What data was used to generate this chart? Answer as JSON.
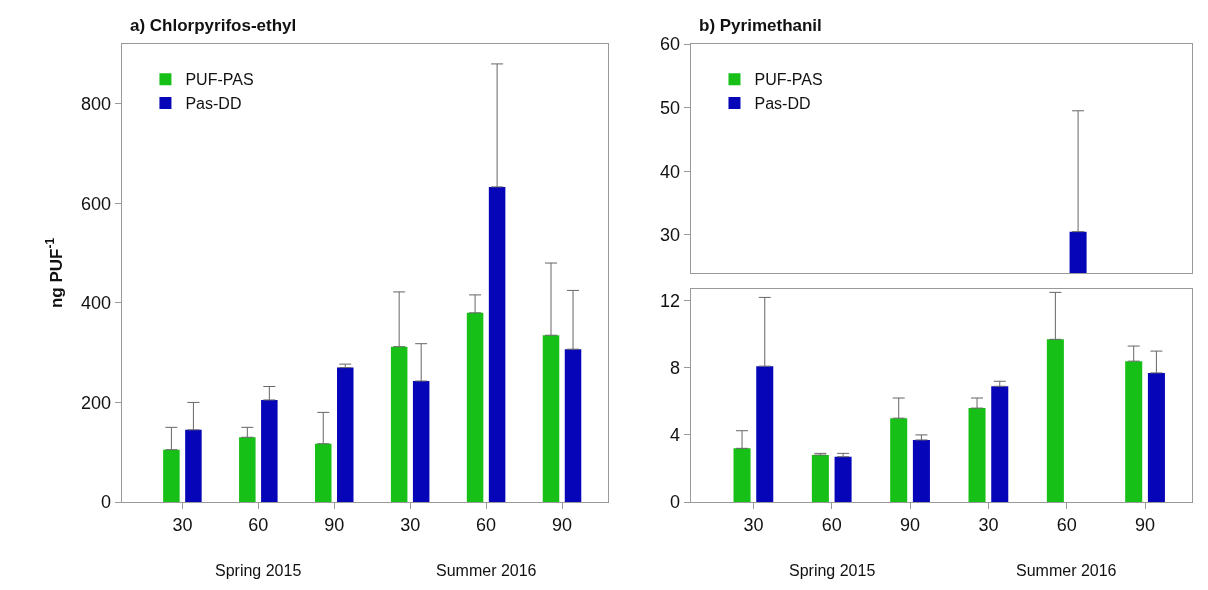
{
  "chart_data": [
    {
      "type": "bar",
      "title": "a) Chlorpyrifos-ethyl",
      "ylabel": "ng PUF$^{-1}$",
      "categories": [
        "30",
        "60",
        "90",
        "30",
        "60",
        "90"
      ],
      "series": [
        {
          "name": "PUF-PAS",
          "color": "#16c016",
          "values": [
            105,
            130,
            117,
            312,
            380,
            335
          ],
          "errors": [
            [
              105,
              150
            ],
            [
              130,
              150
            ],
            [
              117,
              180
            ],
            [
              312,
              422
            ],
            [
              380,
              416
            ],
            [
              335,
              480
            ]
          ]
        },
        {
          "name": "Pas-DD",
          "color": "#0606b8",
          "values": [
            145,
            205,
            270,
            243,
            633,
            307
          ],
          "errors": [
            [
              145,
              200
            ],
            [
              205,
              232
            ],
            [
              270,
              277
            ],
            [
              243,
              318
            ],
            [
              633,
              880
            ],
            [
              307,
              425
            ]
          ]
        }
      ],
      "ylim": [
        0,
        920
      ],
      "yticks": [
        0,
        200,
        400,
        600,
        800
      ],
      "legend": "top left",
      "annotations": [
        "Spring 2015",
        "Summer 2016"
      ]
    },
    {
      "type": "bar",
      "title": "b) Pyrimethanil",
      "categories": [
        "30",
        "60",
        "90",
        "30",
        "60",
        "90"
      ],
      "series": [
        {
          "name": "PUF-PAS",
          "color": "#16c016",
          "values": [
            null,
            null,
            null,
            null,
            null,
            null
          ]
        },
        {
          "name": "Pas-DD",
          "color": "#0606b8",
          "values": [
            null,
            null,
            null,
            null,
            30.5,
            null
          ],
          "errors": [
            null,
            null,
            null,
            null,
            [
              30.5,
              49.5
            ],
            null
          ]
        }
      ],
      "ylim": [
        24,
        60
      ],
      "yticks": [
        30,
        40,
        50,
        60
      ],
      "legend": "top left",
      "tick_labels": "y"
    },
    {
      "type": "bar",
      "categories": [
        "30",
        "60",
        "90",
        "30",
        "60",
        "90"
      ],
      "series": [
        {
          "color": "#16c016",
          "values": [
            3.2,
            2.8,
            5.0,
            5.6,
            9.7,
            8.4
          ],
          "errors": [
            [
              3.2,
              4.25
            ],
            [
              2.8,
              2.9
            ],
            [
              5.0,
              6.2
            ],
            [
              5.6,
              6.2
            ],
            [
              9.7,
              12.5
            ],
            [
              8.4,
              9.3
            ]
          ]
        },
        {
          "color": "#0606b8",
          "values": [
            8.1,
            2.7,
            3.7,
            6.9,
            null,
            7.7
          ],
          "errors": [
            [
              8.1,
              12.2
            ],
            [
              2.7,
              2.9
            ],
            [
              3.7,
              4.0
            ],
            [
              6.9,
              7.2
            ],
            null,
            [
              7.7,
              9.0
            ]
          ]
        }
      ],
      "ylim": [
        0,
        12.7
      ],
      "yticks": [
        0,
        4,
        8,
        12
      ],
      "annotations": [
        "Spring 2015",
        "Summer 2016"
      ]
    }
  ]
}
